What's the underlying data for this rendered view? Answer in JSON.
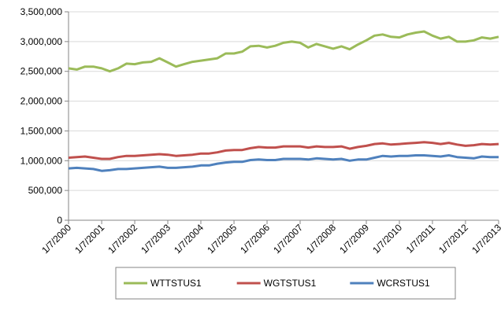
{
  "chart_data": {
    "type": "line",
    "x": [
      "1/7/2000",
      "4/7/2000",
      "7/7/2000",
      "10/7/2000",
      "1/7/2001",
      "4/7/2001",
      "7/7/2001",
      "10/7/2001",
      "1/7/2002",
      "4/7/2002",
      "7/7/2002",
      "10/7/2002",
      "1/7/2003",
      "4/7/2003",
      "7/7/2003",
      "10/7/2003",
      "1/7/2004",
      "4/7/2004",
      "7/7/2004",
      "10/7/2004",
      "1/7/2005",
      "4/7/2005",
      "7/7/2005",
      "10/7/2005",
      "1/7/2006",
      "4/7/2006",
      "7/7/2006",
      "10/7/2006",
      "1/7/2007",
      "4/7/2007",
      "7/7/2007",
      "10/7/2007",
      "1/7/2008",
      "4/7/2008",
      "7/7/2008",
      "10/7/2008",
      "1/7/2009",
      "4/7/2009",
      "7/7/2009",
      "10/7/2009",
      "1/7/2010",
      "4/7/2010",
      "7/7/2010",
      "10/7/2010",
      "1/7/2011",
      "4/7/2011",
      "7/7/2011",
      "10/7/2011",
      "1/7/2012",
      "4/7/2012",
      "7/7/2012",
      "10/7/2012",
      "1/7/2013"
    ],
    "series": [
      {
        "name": "WTTSTUS1",
        "color": "#9bbb59",
        "values": [
          2550000,
          2530000,
          2580000,
          2580000,
          2550000,
          2500000,
          2550000,
          2630000,
          2620000,
          2650000,
          2660000,
          2720000,
          2650000,
          2580000,
          2620000,
          2660000,
          2680000,
          2700000,
          2720000,
          2800000,
          2800000,
          2830000,
          2920000,
          2930000,
          2900000,
          2930000,
          2980000,
          3000000,
          2980000,
          2900000,
          2960000,
          2920000,
          2880000,
          2920000,
          2870000,
          2950000,
          3020000,
          3100000,
          3120000,
          3080000,
          3070000,
          3120000,
          3150000,
          3170000,
          3100000,
          3050000,
          3080000,
          3000000,
          3000000,
          3020000,
          3070000,
          3050000,
          3080000
        ]
      },
      {
        "name": "WGTSTUS1",
        "color": "#c0504d",
        "values": [
          1050000,
          1060000,
          1070000,
          1050000,
          1030000,
          1030000,
          1060000,
          1080000,
          1080000,
          1090000,
          1100000,
          1110000,
          1100000,
          1080000,
          1090000,
          1100000,
          1120000,
          1120000,
          1140000,
          1170000,
          1180000,
          1180000,
          1210000,
          1230000,
          1220000,
          1220000,
          1240000,
          1240000,
          1240000,
          1220000,
          1240000,
          1230000,
          1230000,
          1240000,
          1200000,
          1230000,
          1250000,
          1280000,
          1290000,
          1270000,
          1280000,
          1290000,
          1300000,
          1310000,
          1300000,
          1280000,
          1300000,
          1270000,
          1250000,
          1260000,
          1280000,
          1270000,
          1280000
        ]
      },
      {
        "name": "WCRSTUS1",
        "color": "#4f81bd",
        "values": [
          870000,
          880000,
          870000,
          860000,
          830000,
          840000,
          860000,
          860000,
          870000,
          880000,
          890000,
          900000,
          880000,
          880000,
          890000,
          900000,
          920000,
          920000,
          950000,
          970000,
          980000,
          980000,
          1010000,
          1020000,
          1010000,
          1010000,
          1030000,
          1030000,
          1030000,
          1020000,
          1040000,
          1030000,
          1020000,
          1030000,
          1000000,
          1020000,
          1020000,
          1050000,
          1080000,
          1070000,
          1080000,
          1080000,
          1090000,
          1090000,
          1080000,
          1070000,
          1090000,
          1060000,
          1050000,
          1040000,
          1070000,
          1060000,
          1060000
        ]
      }
    ],
    "xticks": [
      "1/7/2000",
      "1/7/2001",
      "1/7/2002",
      "1/7/2003",
      "1/7/2004",
      "1/7/2005",
      "1/7/2006",
      "1/7/2007",
      "1/7/2008",
      "1/7/2009",
      "1/7/2010",
      "1/7/2011",
      "1/7/2012",
      "1/7/2013"
    ],
    "ylim": [
      0,
      3500000
    ],
    "yticks": [
      0,
      {
        "value": 500000,
        "label": "500,000"
      },
      {
        "value": 1000000,
        "label": "1,000,000"
      },
      {
        "value": 1500000,
        "label": "1,500,000"
      },
      {
        "value": 2000000,
        "label": "2,000,000"
      },
      {
        "value": 2500000,
        "label": "2,500,000"
      },
      {
        "value": 3000000,
        "label": "3,000,000"
      },
      {
        "value": 3500000,
        "label": "3,500,000"
      }
    ],
    "grid": true,
    "legend": "bottom"
  }
}
